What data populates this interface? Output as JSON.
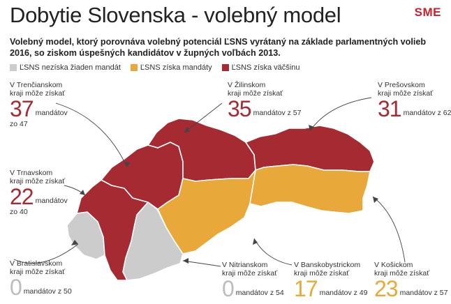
{
  "title": "Dobytie Slovenska - volebný model",
  "logo": "SME",
  "subtitle": "Volebný model, ktorý porovnáva volebný potenciál ĽSNS vyrátaný na základe parlamentných volieb 2016, so ziskom úspešných kandidátov v župných voľbách 2013.",
  "legend": [
    {
      "label": "ĽSNS nezíska žiaden mandát",
      "color": "#cccccc"
    },
    {
      "label": "ĽSNS získa mandáty",
      "color": "#e9a83a"
    },
    {
      "label": "ĽSNS získa väčšinu",
      "color": "#a62a32"
    }
  ],
  "colors": {
    "gray": "#cccccc",
    "orange": "#e9a83a",
    "red": "#a62a32",
    "border": "#ffffff"
  },
  "regions": [
    {
      "name": "Trenčiansky",
      "line1": "V Trenčianskom",
      "line2": "kraji môže získať",
      "seats": "37",
      "tail": "mandátov",
      "sub": "zo 47",
      "status": "red"
    },
    {
      "name": "Žilinský",
      "line1": "V Žilinskom",
      "line2": "kraji môže získať",
      "seats": "35",
      "tail": "mandátov z 57",
      "sub": "",
      "status": "red"
    },
    {
      "name": "Prešovský",
      "line1": "V Prešovskom",
      "line2": "kraji môže získať",
      "seats": "31",
      "tail": "mandátov z 62",
      "sub": "",
      "status": "red"
    },
    {
      "name": "Trnavský",
      "line1": "V Trnavskom",
      "line2": "kraji môže získať",
      "seats": "22",
      "tail": "mandátov",
      "sub": "zo 40",
      "status": "red"
    },
    {
      "name": "Bratislavský",
      "line1": "V Bratislavskom",
      "line2": "kraji môže získať",
      "seats": "0",
      "tail": "mandátov z 50",
      "sub": "",
      "status": "gray"
    },
    {
      "name": "Nitriansky",
      "line1": "V Nitrianskom",
      "line2": "kraji môže získať",
      "seats": "0",
      "tail": "mandátov z 54",
      "sub": "",
      "status": "gray"
    },
    {
      "name": "Banskobystrický",
      "line1": "V Banskobystrickom",
      "line2": "kraji môže získať",
      "seats": "17",
      "tail": "mandátov z 49",
      "sub": "",
      "status": "orange"
    },
    {
      "name": "Košický",
      "line1": "V Košickom",
      "line2": "kraji môže získať",
      "seats": "23",
      "tail": "mandátov z 57",
      "sub": "",
      "status": "orange"
    }
  ]
}
